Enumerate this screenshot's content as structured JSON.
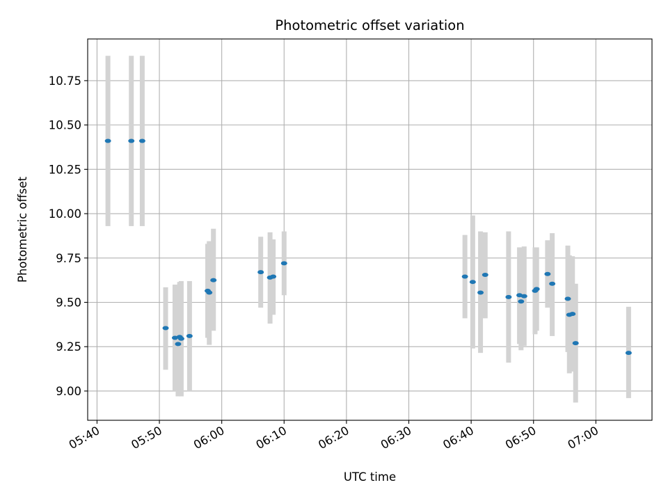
{
  "chart_data": {
    "type": "scatter",
    "title": "Photometric offset variation",
    "xlabel": "UTC time",
    "ylabel": "Photometric offset",
    "grid": true,
    "xlim": [
      "05:38:30",
      "06:69:00"
    ],
    "ylim": [
      8.835,
      10.985
    ],
    "x_ticks": [
      "05:40",
      "05:50",
      "06:00",
      "06:10",
      "06:20",
      "06:30",
      "06:40",
      "06:50",
      "07:00"
    ],
    "y_ticks": [
      "9.00",
      "9.25",
      "9.50",
      "9.75",
      "10.00",
      "10.25",
      "10.50",
      "10.75"
    ],
    "colors": {
      "point": "#1f77b4",
      "errorbar": "#d3d3d3",
      "grid": "#b0b0b0"
    },
    "series": [
      {
        "points": [
          {
            "t": "05:41:45",
            "y": 10.41,
            "lo": 9.93,
            "hi": 10.89
          },
          {
            "t": "05:45:30",
            "y": 10.41,
            "lo": 9.93,
            "hi": 10.89
          },
          {
            "t": "05:47:15",
            "y": 10.41,
            "lo": 9.93,
            "hi": 10.89
          },
          {
            "t": "05:51:00",
            "y": 9.355,
            "lo": 9.12,
            "hi": 9.585
          },
          {
            "t": "05:52:30",
            "y": 9.3,
            "lo": 9.0,
            "hi": 9.6
          },
          {
            "t": "05:53:00",
            "y": 9.265,
            "lo": 8.97,
            "hi": 9.57
          },
          {
            "t": "05:53:15",
            "y": 9.305,
            "lo": 9.0,
            "hi": 9.615
          },
          {
            "t": "05:53:30",
            "y": 9.295,
            "lo": 8.97,
            "hi": 9.62
          },
          {
            "t": "05:54:50",
            "y": 9.31,
            "lo": 9.0,
            "hi": 9.62
          },
          {
            "t": "05:57:45",
            "y": 9.565,
            "lo": 9.3,
            "hi": 9.83
          },
          {
            "t": "05:58:00",
            "y": 9.555,
            "lo": 9.26,
            "hi": 9.845
          },
          {
            "t": "05:58:40",
            "y": 9.625,
            "lo": 9.34,
            "hi": 9.915
          },
          {
            "t": "06:06:15",
            "y": 9.67,
            "lo": 9.47,
            "hi": 9.87
          },
          {
            "t": "06:07:45",
            "y": 9.64,
            "lo": 9.38,
            "hi": 9.895
          },
          {
            "t": "06:08:15",
            "y": 9.645,
            "lo": 9.43,
            "hi": 9.855
          },
          {
            "t": "06:10:00",
            "y": 9.72,
            "lo": 9.54,
            "hi": 9.9
          },
          {
            "t": "06:39:00",
            "y": 9.645,
            "lo": 9.41,
            "hi": 9.88
          },
          {
            "t": "06:40:15",
            "y": 9.615,
            "lo": 9.24,
            "hi": 9.99
          },
          {
            "t": "06:41:30",
            "y": 9.555,
            "lo": 9.215,
            "hi": 9.9
          },
          {
            "t": "06:42:15",
            "y": 9.655,
            "lo": 9.41,
            "hi": 9.895
          },
          {
            "t": "06:46:00",
            "y": 9.53,
            "lo": 9.16,
            "hi": 9.9
          },
          {
            "t": "06:47:45",
            "y": 9.54,
            "lo": 9.265,
            "hi": 9.81
          },
          {
            "t": "06:48:00",
            "y": 9.505,
            "lo": 9.23,
            "hi": 9.78
          },
          {
            "t": "06:48:30",
            "y": 9.535,
            "lo": 9.255,
            "hi": 9.815
          },
          {
            "t": "06:50:15",
            "y": 9.565,
            "lo": 9.32,
            "hi": 9.81
          },
          {
            "t": "06:50:30",
            "y": 9.575,
            "lo": 9.34,
            "hi": 9.81
          },
          {
            "t": "06:52:15",
            "y": 9.66,
            "lo": 9.47,
            "hi": 9.85
          },
          {
            "t": "06:53:00",
            "y": 9.605,
            "lo": 9.31,
            "hi": 9.89
          },
          {
            "t": "06:55:30",
            "y": 9.52,
            "lo": 9.22,
            "hi": 9.82
          },
          {
            "t": "06:55:45",
            "y": 9.43,
            "lo": 9.1,
            "hi": 9.765
          },
          {
            "t": "06:56:15",
            "y": 9.435,
            "lo": 9.11,
            "hi": 9.76
          },
          {
            "t": "06:56:45",
            "y": 9.27,
            "lo": 8.935,
            "hi": 9.605
          },
          {
            "t": "07:05:15",
            "y": 9.215,
            "lo": 8.96,
            "hi": 9.475
          }
        ]
      }
    ]
  }
}
